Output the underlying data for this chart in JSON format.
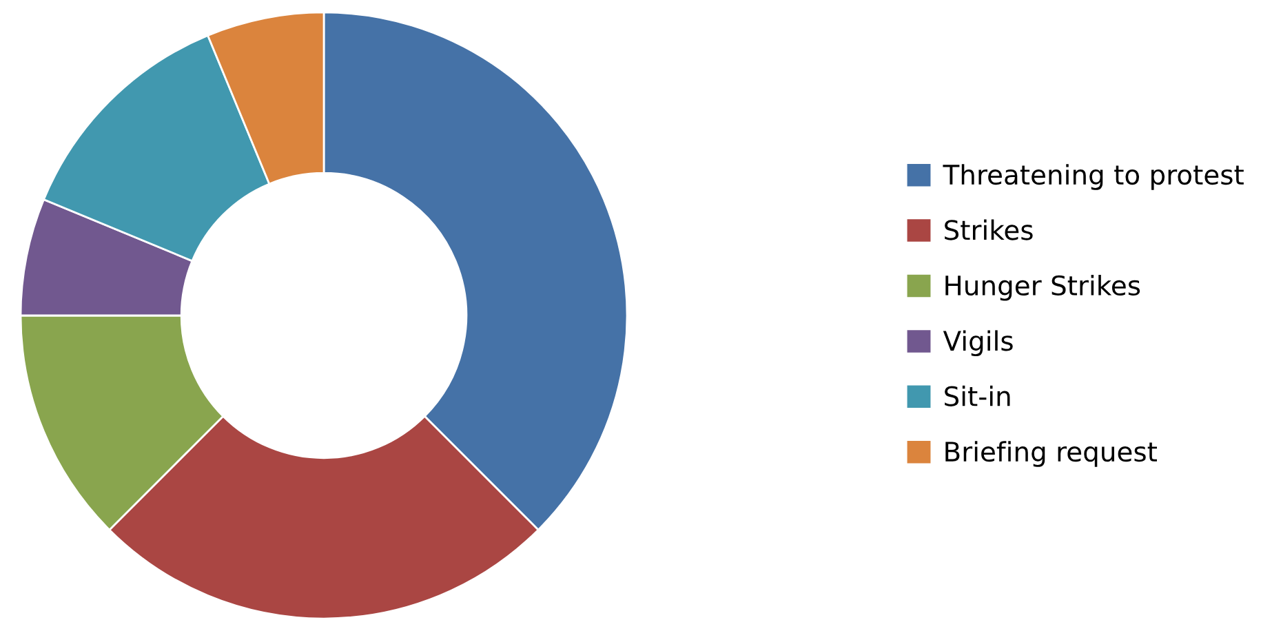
{
  "chart_data": {
    "type": "donut",
    "categories": [
      "Threatening to protest",
      "Strikes",
      "Hunger Strikes",
      "Vigils",
      "Sit-in",
      "Briefing request"
    ],
    "values": [
      37.5,
      25,
      12.5,
      6.25,
      12.5,
      6.25
    ],
    "colors": [
      "#4572a7",
      "#aa4643",
      "#89a54e",
      "#71588f",
      "#4198af",
      "#db843d"
    ],
    "legend": "right"
  }
}
